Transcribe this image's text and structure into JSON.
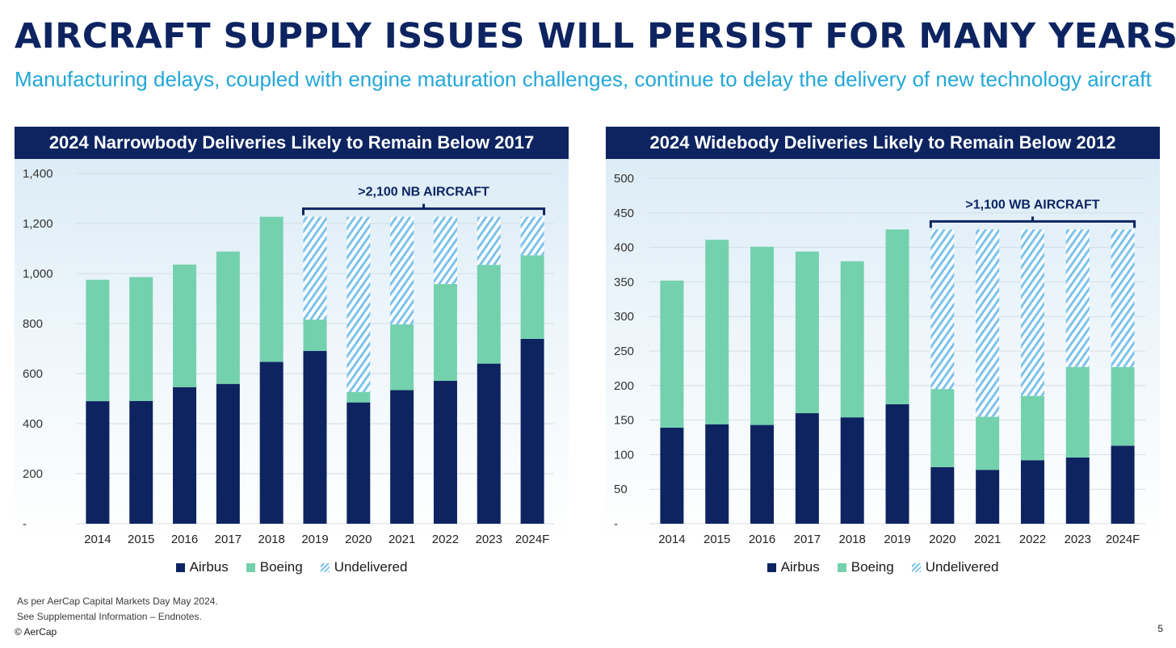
{
  "title": "AIRCRAFT SUPPLY ISSUES WILL PERSIST FOR MANY YEARS",
  "subtitle": "Manufacturing delays, coupled with engine maturation challenges, continue to delay the delivery of new technology aircraft",
  "colors": {
    "airbus": "#0d2461",
    "boeing": "#74d1ae",
    "undelivered": "#7cc2ea",
    "header_bg": "#0d2461",
    "subtitle": "#23a7d8"
  },
  "chart_data": [
    {
      "type": "bar",
      "stacked": true,
      "title": "2024 Narrowbody Deliveries Likely to Remain Below 2017",
      "categories": [
        "2014",
        "2015",
        "2016",
        "2017",
        "2018",
        "2019",
        "2020",
        "2021",
        "2022",
        "2023",
        "2024F"
      ],
      "series": [
        {
          "name": "Airbus",
          "values": [
            490,
            491,
            546,
            559,
            647,
            691,
            485,
            534,
            571,
            640,
            739
          ]
        },
        {
          "name": "Boeing",
          "values": [
            485,
            495,
            490,
            529,
            580,
            125,
            42,
            263,
            387,
            395,
            334
          ]
        },
        {
          "name": "Undelivered",
          "values": [
            0,
            0,
            0,
            0,
            0,
            411,
            700,
            430,
            269,
            192,
            154
          ]
        }
      ],
      "ylim": [
        0,
        1400
      ],
      "yticks": [
        0,
        200,
        400,
        600,
        800,
        1000,
        1200,
        1400
      ],
      "ytick_labels": [
        "-",
        "200",
        "400",
        "600",
        "800",
        "1,000",
        "1,200",
        "1,400"
      ],
      "annotation": {
        "text": ">2,100 NB AIRCRAFT",
        "from_category": "2019",
        "to_category": "2024F"
      },
      "legend": [
        "Airbus",
        "Boeing",
        "Undelivered"
      ],
      "legend_position": "bottom",
      "grid": true
    },
    {
      "type": "bar",
      "stacked": true,
      "title": "2024 Widebody Deliveries Likely to Remain Below 2012",
      "categories": [
        "2014",
        "2015",
        "2016",
        "2017",
        "2018",
        "2019",
        "2020",
        "2021",
        "2022",
        "2023",
        "2024F"
      ],
      "series": [
        {
          "name": "Airbus",
          "values": [
            139,
            144,
            143,
            160,
            154,
            173,
            82,
            78,
            92,
            96,
            113
          ]
        },
        {
          "name": "Boeing",
          "values": [
            213,
            267,
            258,
            234,
            226,
            253,
            113,
            77,
            93,
            131,
            114
          ]
        },
        {
          "name": "Undelivered",
          "values": [
            0,
            0,
            0,
            0,
            0,
            0,
            231,
            271,
            241,
            199,
            199
          ]
        }
      ],
      "ylim": [
        0,
        500
      ],
      "yticks": [
        0,
        50,
        100,
        150,
        200,
        250,
        300,
        350,
        400,
        450,
        500
      ],
      "ytick_labels": [
        "-",
        "50",
        "100",
        "150",
        "200",
        "250",
        "300",
        "350",
        "400",
        "450",
        "500"
      ],
      "annotation": {
        "text": ">1,100 WB AIRCRAFT",
        "from_category": "2020",
        "to_category": "2024F"
      },
      "legend": [
        "Airbus",
        "Boeing",
        "Undelivered"
      ],
      "legend_position": "bottom",
      "grid": true
    }
  ],
  "footnotes": {
    "line1": "As per AerCap Capital Markets Day May 2024.",
    "line2": "See Supplemental Information – Endnotes.",
    "copyright": "© AerCap",
    "page_number": "5"
  }
}
